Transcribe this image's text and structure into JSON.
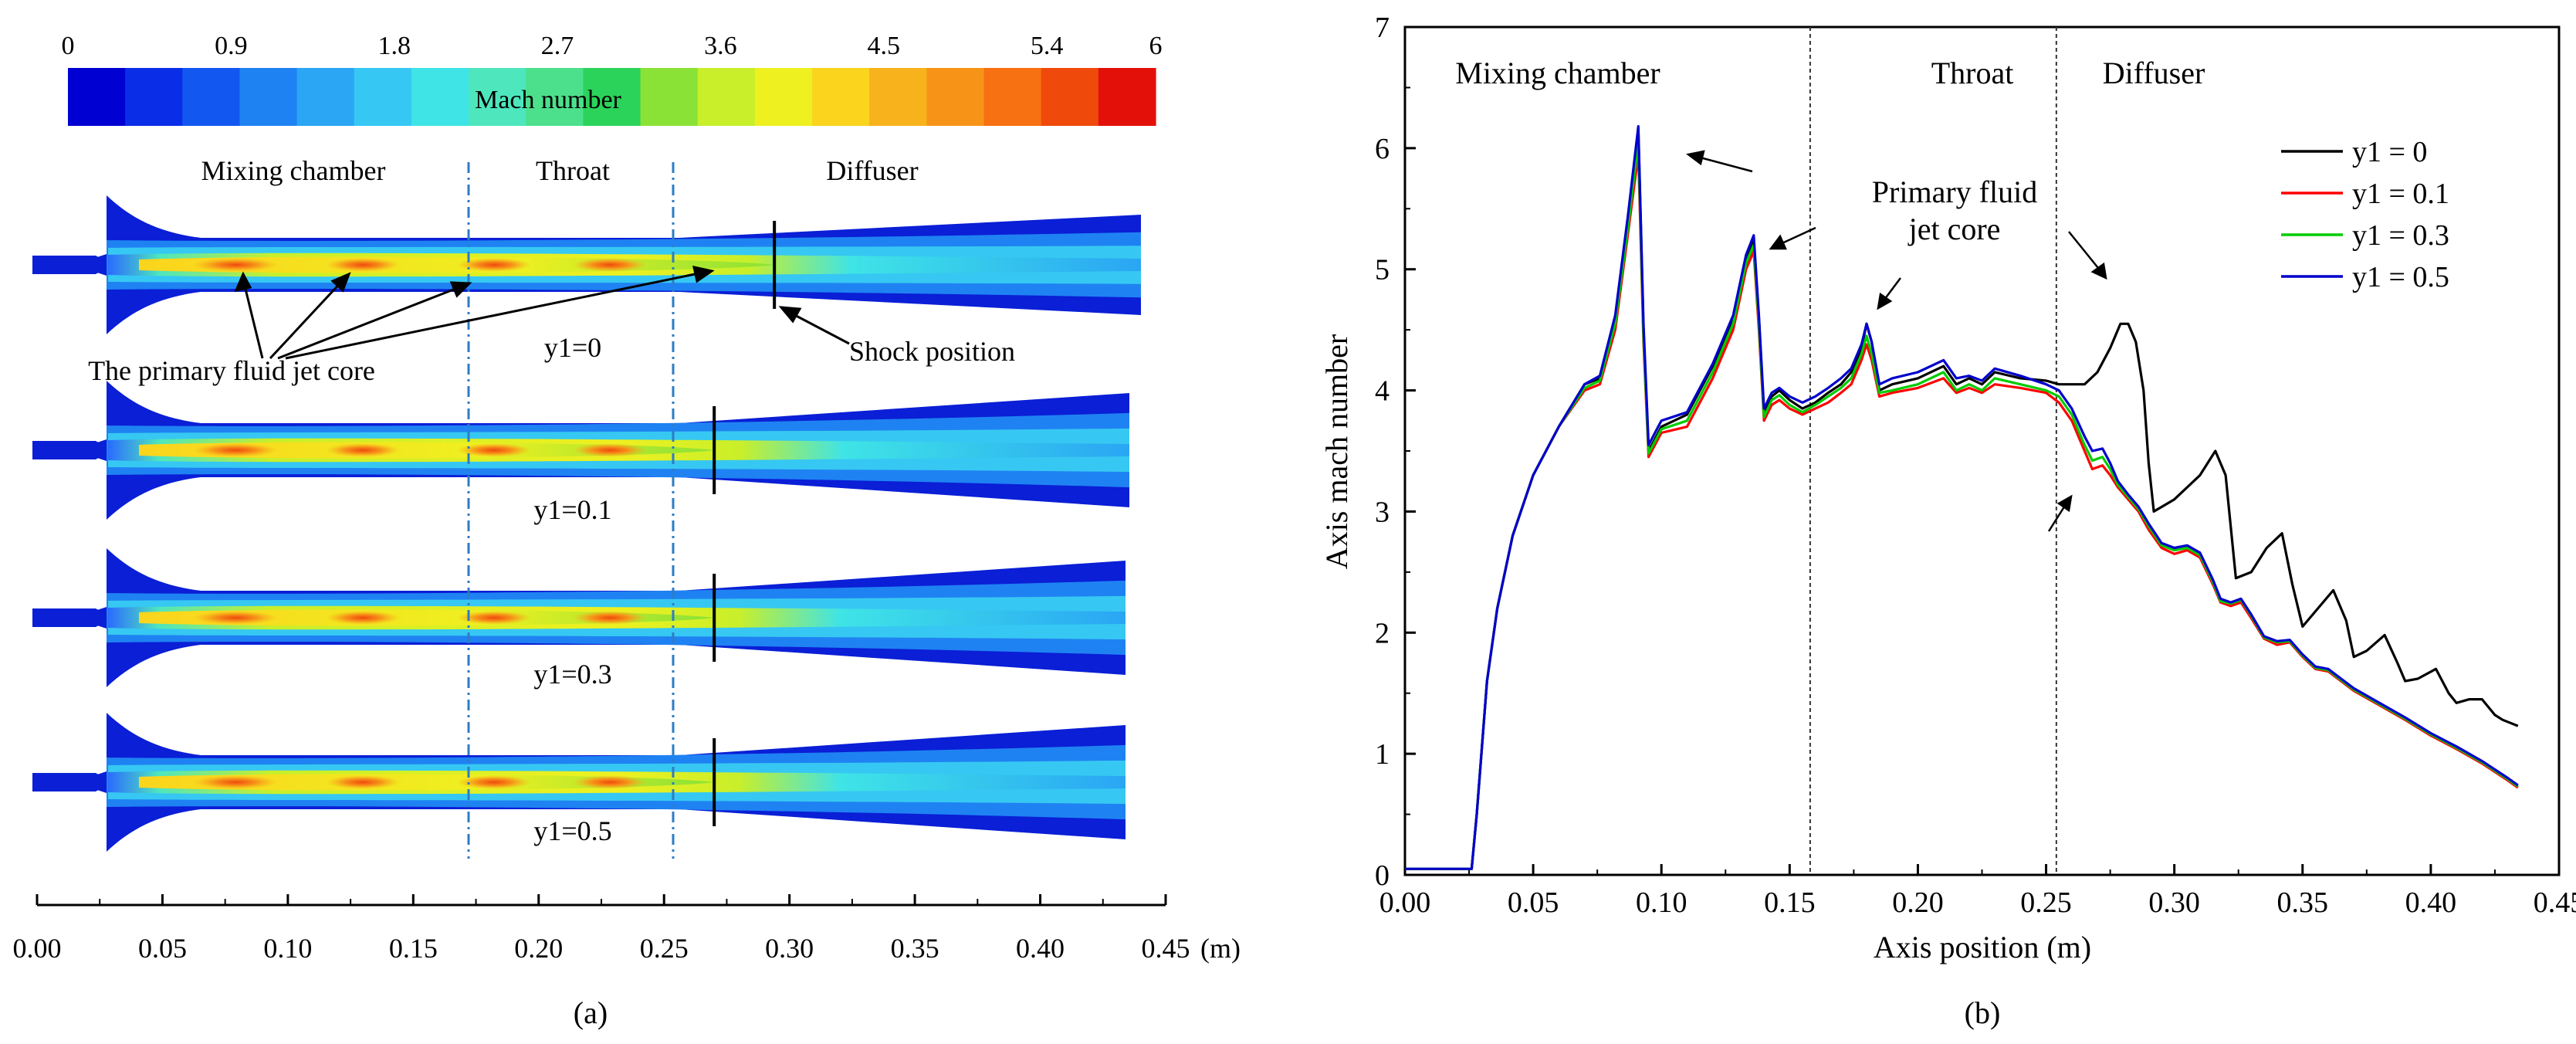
{
  "panel_a": {
    "colorbar": {
      "title": "Mach number",
      "ticks": [
        "0",
        "0.9",
        "1.8",
        "2.7",
        "3.6",
        "4.5",
        "5.4",
        "6"
      ],
      "tick_values": [
        0,
        0.9,
        1.8,
        2.7,
        3.6,
        4.5,
        5.4,
        6
      ],
      "min": 0,
      "max": 6,
      "colors": [
        "#0000d2",
        "#0a2ee8",
        "#1258f0",
        "#1f82f2",
        "#2aa6f4",
        "#36c8f2",
        "#3fe4e6",
        "#4ee6bd",
        "#4ce08c",
        "#2bd35a",
        "#8be236",
        "#c8ef2a",
        "#eef020",
        "#fbd41d",
        "#f7b21c",
        "#f79418",
        "#f77012",
        "#ef4a0c",
        "#e3100a"
      ]
    },
    "section_labels": [
      "Mixing chamber",
      "Throat",
      "Diffuser"
    ],
    "section_boundaries_m": [
      0.172,
      0.256
    ],
    "contours": [
      {
        "label": "y1=0",
        "shock_m": 0.294
      },
      {
        "label": "y1=0.1",
        "shock_m": 0.27
      },
      {
        "label": "y1=0.3",
        "shock_m": 0.27
      },
      {
        "label": "y1=0.5",
        "shock_m": 0.27
      }
    ],
    "annotations": {
      "jet_core": "The primary fluid jet core",
      "shock": "Shock position"
    },
    "axis": {
      "min": 0,
      "max": 0.45,
      "ticks": [
        "0.00",
        "0.05",
        "0.10",
        "0.15",
        "0.20",
        "0.25",
        "0.30",
        "0.35",
        "0.40",
        "0.45"
      ],
      "tick_values": [
        0,
        0.05,
        0.1,
        0.15,
        0.2,
        0.25,
        0.3,
        0.35,
        0.4,
        0.45
      ],
      "unit": "(m)"
    },
    "caption": "(a)"
  },
  "chart_data": {
    "type": "line",
    "title": "",
    "xlabel": "Axis position (m)",
    "ylabel": "Axis mach number",
    "xlim": [
      0,
      0.45
    ],
    "ylim": [
      0,
      7
    ],
    "xticks": [
      "0.00",
      "0.05",
      "0.10",
      "0.15",
      "0.20",
      "0.25",
      "0.30",
      "0.35",
      "0.40",
      "0.45"
    ],
    "xtick_values": [
      0,
      0.05,
      0.1,
      0.15,
      0.2,
      0.25,
      0.3,
      0.35,
      0.4,
      0.45
    ],
    "yticks": [
      "0",
      "1",
      "2",
      "3",
      "4",
      "5",
      "6",
      "7"
    ],
    "ytick_values": [
      0,
      1,
      2,
      3,
      4,
      5,
      6,
      7
    ],
    "regions": [
      "Mixing chamber",
      "Throat",
      "Diffuser"
    ],
    "region_boundaries": [
      0.158,
      0.254
    ],
    "annotation": "Primary fluid\njet core",
    "legend_position": "right",
    "series": [
      {
        "name": "y1 = 0",
        "color": "#000000",
        "x": [
          0,
          0.026,
          0.028,
          0.032,
          0.036,
          0.042,
          0.05,
          0.06,
          0.07,
          0.076,
          0.082,
          0.087,
          0.091,
          0.093,
          0.095,
          0.1,
          0.11,
          0.12,
          0.128,
          0.133,
          0.136,
          0.138,
          0.14,
          0.143,
          0.146,
          0.15,
          0.155,
          0.16,
          0.165,
          0.17,
          0.174,
          0.178,
          0.18,
          0.182,
          0.185,
          0.19,
          0.2,
          0.21,
          0.215,
          0.22,
          0.225,
          0.23,
          0.24,
          0.25,
          0.255,
          0.26,
          0.265,
          0.27,
          0.275,
          0.279,
          0.282,
          0.285,
          0.288,
          0.29,
          0.292,
          0.3,
          0.31,
          0.316,
          0.32,
          0.324,
          0.33,
          0.336,
          0.342,
          0.346,
          0.35,
          0.356,
          0.362,
          0.367,
          0.37,
          0.375,
          0.382,
          0.387,
          0.39,
          0.395,
          0.402,
          0.407,
          0.41,
          0.415,
          0.42,
          0.425,
          0.428,
          0.434
        ],
        "y": [
          0.05,
          0.05,
          0.5,
          1.6,
          2.2,
          2.8,
          3.3,
          3.7,
          4.05,
          4.1,
          4.6,
          5.4,
          6.15,
          4.5,
          3.5,
          3.7,
          3.8,
          4.2,
          4.6,
          5.1,
          5.25,
          4.6,
          3.8,
          3.95,
          4.0,
          3.92,
          3.85,
          3.9,
          3.98,
          4.05,
          4.15,
          4.35,
          4.55,
          4.4,
          4.0,
          4.05,
          4.1,
          4.2,
          4.05,
          4.1,
          4.05,
          4.15,
          4.1,
          4.08,
          4.05,
          4.05,
          4.05,
          4.15,
          4.35,
          4.55,
          4.55,
          4.4,
          4.0,
          3.4,
          3.0,
          3.1,
          3.3,
          3.5,
          3.3,
          2.45,
          2.5,
          2.7,
          2.82,
          2.4,
          2.05,
          2.2,
          2.35,
          2.1,
          1.8,
          1.85,
          1.98,
          1.75,
          1.6,
          1.62,
          1.7,
          1.5,
          1.42,
          1.45,
          1.45,
          1.32,
          1.28,
          1.23
        ]
      },
      {
        "name": "y1 = 0.1",
        "color": "#ff0000",
        "x": [
          0,
          0.026,
          0.028,
          0.032,
          0.036,
          0.042,
          0.05,
          0.06,
          0.07,
          0.076,
          0.082,
          0.087,
          0.091,
          0.093,
          0.095,
          0.1,
          0.11,
          0.12,
          0.128,
          0.133,
          0.136,
          0.138,
          0.14,
          0.143,
          0.146,
          0.15,
          0.155,
          0.16,
          0.165,
          0.17,
          0.174,
          0.178,
          0.18,
          0.182,
          0.185,
          0.19,
          0.2,
          0.21,
          0.215,
          0.22,
          0.225,
          0.23,
          0.24,
          0.25,
          0.255,
          0.26,
          0.265,
          0.268,
          0.272,
          0.275,
          0.278,
          0.282,
          0.286,
          0.29,
          0.295,
          0.3,
          0.305,
          0.31,
          0.315,
          0.318,
          0.322,
          0.326,
          0.33,
          0.335,
          0.34,
          0.345,
          0.35,
          0.355,
          0.36,
          0.365,
          0.37,
          0.38,
          0.39,
          0.4,
          0.41,
          0.42,
          0.43,
          0.434
        ],
        "y": [
          0.05,
          0.05,
          0.5,
          1.6,
          2.2,
          2.8,
          3.3,
          3.7,
          4.0,
          4.05,
          4.5,
          5.3,
          5.95,
          4.4,
          3.45,
          3.65,
          3.7,
          4.1,
          4.5,
          5.0,
          5.15,
          4.5,
          3.75,
          3.88,
          3.92,
          3.85,
          3.8,
          3.85,
          3.9,
          3.98,
          4.05,
          4.25,
          4.38,
          4.25,
          3.95,
          3.98,
          4.02,
          4.1,
          3.98,
          4.02,
          3.98,
          4.05,
          4.02,
          3.98,
          3.9,
          3.75,
          3.5,
          3.35,
          3.38,
          3.3,
          3.2,
          3.1,
          3.0,
          2.85,
          2.7,
          2.65,
          2.68,
          2.62,
          2.4,
          2.25,
          2.22,
          2.25,
          2.12,
          1.95,
          1.9,
          1.92,
          1.8,
          1.7,
          1.68,
          1.6,
          1.52,
          1.4,
          1.28,
          1.15,
          1.04,
          0.92,
          0.78,
          0.72
        ]
      },
      {
        "name": "y1 = 0.3",
        "color": "#00cc00",
        "x": [
          0,
          0.026,
          0.028,
          0.032,
          0.036,
          0.042,
          0.05,
          0.06,
          0.07,
          0.076,
          0.082,
          0.087,
          0.091,
          0.093,
          0.095,
          0.1,
          0.11,
          0.12,
          0.128,
          0.133,
          0.136,
          0.138,
          0.14,
          0.143,
          0.146,
          0.15,
          0.155,
          0.16,
          0.165,
          0.17,
          0.174,
          0.178,
          0.18,
          0.182,
          0.185,
          0.19,
          0.2,
          0.21,
          0.215,
          0.22,
          0.225,
          0.23,
          0.24,
          0.25,
          0.255,
          0.26,
          0.265,
          0.268,
          0.272,
          0.275,
          0.278,
          0.282,
          0.286,
          0.29,
          0.295,
          0.3,
          0.305,
          0.31,
          0.315,
          0.318,
          0.322,
          0.326,
          0.33,
          0.335,
          0.34,
          0.345,
          0.35,
          0.355,
          0.36,
          0.365,
          0.37,
          0.38,
          0.39,
          0.4,
          0.41,
          0.42,
          0.43,
          0.434
        ],
        "y": [
          0.05,
          0.05,
          0.5,
          1.6,
          2.2,
          2.8,
          3.3,
          3.7,
          4.02,
          4.08,
          4.55,
          5.35,
          6.05,
          4.45,
          3.48,
          3.68,
          3.75,
          4.15,
          4.55,
          5.05,
          5.2,
          4.55,
          3.78,
          3.92,
          3.96,
          3.88,
          3.82,
          3.88,
          3.95,
          4.02,
          4.1,
          4.3,
          4.45,
          4.3,
          3.98,
          4.0,
          4.05,
          4.15,
          4.0,
          4.05,
          4.0,
          4.1,
          4.05,
          4.0,
          3.95,
          3.8,
          3.55,
          3.42,
          3.45,
          3.35,
          3.22,
          3.12,
          3.02,
          2.88,
          2.72,
          2.68,
          2.7,
          2.64,
          2.42,
          2.26,
          2.24,
          2.27,
          2.14,
          1.96,
          1.92,
          1.93,
          1.81,
          1.71,
          1.69,
          1.61,
          1.53,
          1.41,
          1.29,
          1.16,
          1.05,
          0.93,
          0.79,
          0.73
        ]
      },
      {
        "name": "y1 = 0.5",
        "color": "#0000cc",
        "x": [
          0,
          0.026,
          0.028,
          0.032,
          0.036,
          0.042,
          0.05,
          0.06,
          0.07,
          0.076,
          0.082,
          0.087,
          0.091,
          0.093,
          0.095,
          0.1,
          0.11,
          0.12,
          0.128,
          0.133,
          0.136,
          0.138,
          0.14,
          0.143,
          0.146,
          0.15,
          0.155,
          0.16,
          0.165,
          0.17,
          0.174,
          0.178,
          0.18,
          0.182,
          0.185,
          0.19,
          0.2,
          0.21,
          0.215,
          0.22,
          0.225,
          0.23,
          0.24,
          0.25,
          0.255,
          0.26,
          0.265,
          0.268,
          0.272,
          0.275,
          0.278,
          0.282,
          0.286,
          0.29,
          0.295,
          0.3,
          0.305,
          0.31,
          0.315,
          0.318,
          0.322,
          0.326,
          0.33,
          0.335,
          0.34,
          0.345,
          0.35,
          0.355,
          0.36,
          0.365,
          0.37,
          0.38,
          0.39,
          0.4,
          0.41,
          0.42,
          0.43,
          0.434
        ],
        "y": [
          0.05,
          0.05,
          0.5,
          1.6,
          2.2,
          2.8,
          3.3,
          3.7,
          4.05,
          4.12,
          4.62,
          5.45,
          6.18,
          4.55,
          3.55,
          3.75,
          3.82,
          4.22,
          4.62,
          5.12,
          5.28,
          4.62,
          3.85,
          3.98,
          4.02,
          3.95,
          3.9,
          3.95,
          4.02,
          4.1,
          4.18,
          4.38,
          4.55,
          4.4,
          4.05,
          4.1,
          4.15,
          4.25,
          4.1,
          4.12,
          4.08,
          4.18,
          4.12,
          4.05,
          4.0,
          3.85,
          3.62,
          3.5,
          3.52,
          3.4,
          3.25,
          3.14,
          3.04,
          2.9,
          2.74,
          2.7,
          2.72,
          2.66,
          2.44,
          2.28,
          2.25,
          2.28,
          2.15,
          1.97,
          1.93,
          1.94,
          1.82,
          1.72,
          1.7,
          1.62,
          1.54,
          1.42,
          1.3,
          1.17,
          1.06,
          0.94,
          0.8,
          0.74
        ]
      }
    ],
    "caption": "(b)"
  }
}
